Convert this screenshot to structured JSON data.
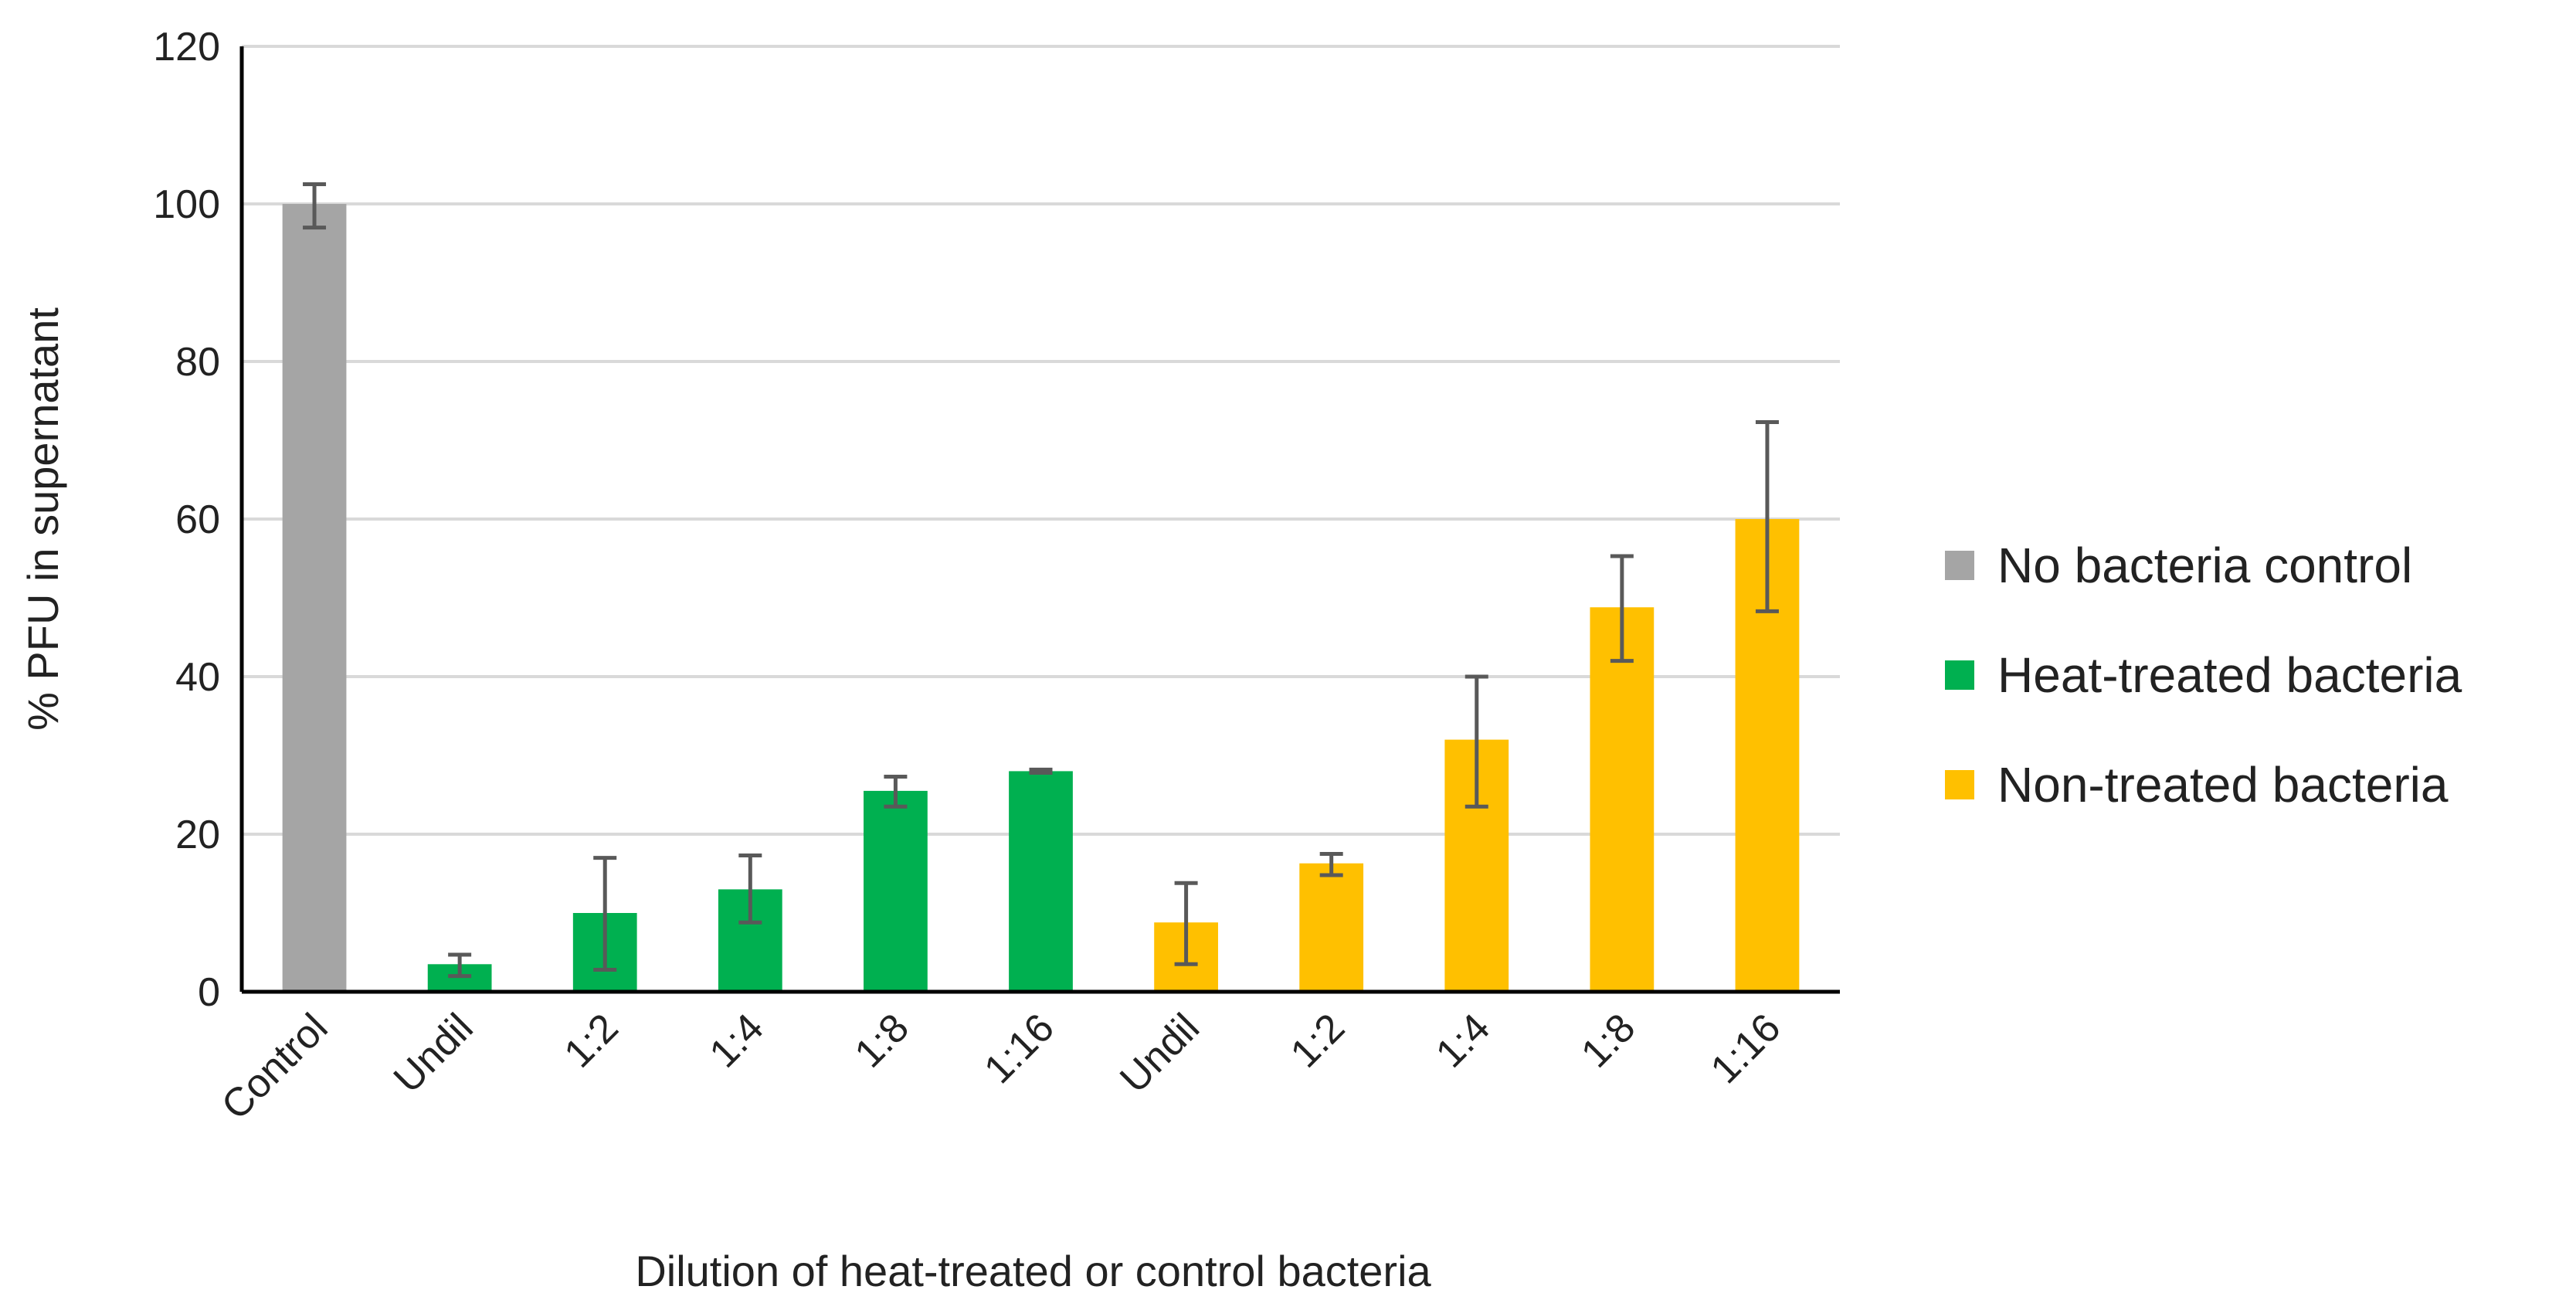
{
  "chart_data": {
    "type": "bar",
    "title": "",
    "xlabel": "Dilution of heat-treated or control bacteria",
    "ylabel": "% PFU in supernatant",
    "ylim": [
      0,
      120
    ],
    "yticks": [
      0,
      20,
      40,
      60,
      80,
      100,
      120
    ],
    "grid": true,
    "legend_position": "right",
    "series": [
      {
        "name": "No bacteria control",
        "color": "#A5A5A5"
      },
      {
        "name": "Heat-treated bacteria",
        "color": "#00B050"
      },
      {
        "name": "Non-treated bacteria",
        "color": "#FFC000"
      }
    ],
    "categories": [
      "Control",
      "Undil",
      "1:2",
      "1:4",
      "1:8",
      "1:16",
      "Undil",
      "1:2",
      "1:4",
      "1:8",
      "1:16"
    ],
    "bars": [
      {
        "category": "Control",
        "series": "No bacteria control",
        "value": 100,
        "err_low": 97,
        "err_high": 102.5
      },
      {
        "category": "Undil",
        "series": "Heat-treated bacteria",
        "value": 3.5,
        "err_low": 2,
        "err_high": 4.7
      },
      {
        "category": "1:2",
        "series": "Heat-treated bacteria",
        "value": 10,
        "err_low": 2.8,
        "err_high": 17
      },
      {
        "category": "1:4",
        "series": "Heat-treated bacteria",
        "value": 13,
        "err_low": 8.8,
        "err_high": 17.3
      },
      {
        "category": "1:8",
        "series": "Heat-treated bacteria",
        "value": 25.5,
        "err_low": 23.5,
        "err_high": 27.3
      },
      {
        "category": "1:16",
        "series": "Heat-treated bacteria",
        "value": 28,
        "err_low": 27.8,
        "err_high": 28.2
      },
      {
        "category": "Undil",
        "series": "Non-treated bacteria",
        "value": 8.8,
        "err_low": 3.5,
        "err_high": 13.8
      },
      {
        "category": "1:2",
        "series": "Non-treated bacteria",
        "value": 16.3,
        "err_low": 14.8,
        "err_high": 17.5
      },
      {
        "category": "1:4",
        "series": "Non-treated bacteria",
        "value": 32,
        "err_low": 23.5,
        "err_high": 40
      },
      {
        "category": "1:8",
        "series": "Non-treated bacteria",
        "value": 48.8,
        "err_low": 42,
        "err_high": 55.3
      },
      {
        "category": "1:16",
        "series": "Non-treated bacteria",
        "value": 60,
        "err_low": 48.3,
        "err_high": 72.3
      }
    ]
  }
}
